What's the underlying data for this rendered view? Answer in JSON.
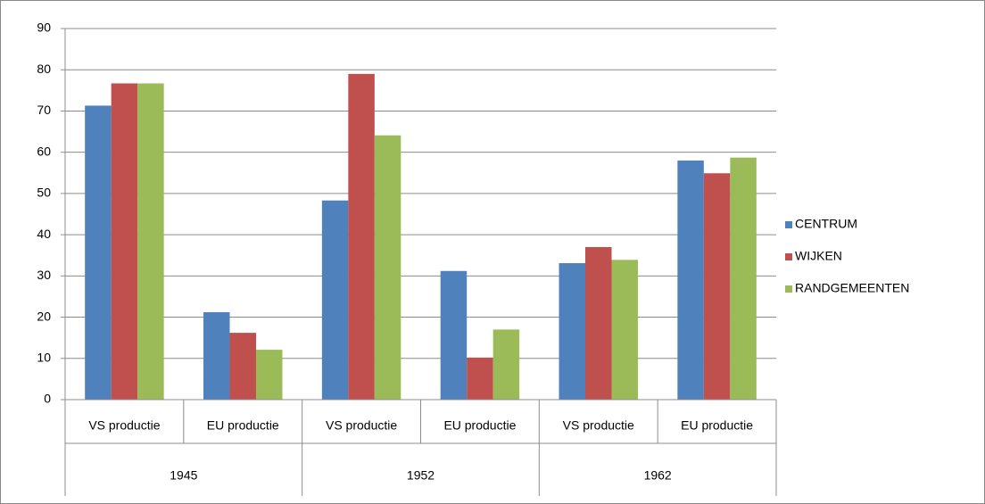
{
  "chart_data": {
    "type": "bar",
    "categories": [
      "VS productie",
      "EU productie",
      "VS productie",
      "EU productie",
      "VS productie",
      "EU productie"
    ],
    "category_groups": [
      "1945",
      "1952",
      "1962"
    ],
    "series": [
      {
        "name": "CENTRUM",
        "color": "#4f81bd",
        "values": [
          71.3,
          21.2,
          48.3,
          31.2,
          33.1,
          58.0
        ]
      },
      {
        "name": "WIJKEN",
        "color": "#c0504d",
        "values": [
          76.7,
          16.2,
          79.0,
          10.2,
          37.0,
          54.9
        ]
      },
      {
        "name": "RANDGEMEENTEN",
        "color": "#9bbb59",
        "values": [
          76.7,
          12.1,
          64.1,
          17.0,
          33.9,
          58.7
        ]
      }
    ],
    "ylim": [
      0,
      90
    ],
    "yticks": [
      0,
      10,
      20,
      30,
      40,
      50,
      60,
      70,
      80,
      90
    ],
    "grid": true,
    "legend": "right"
  }
}
